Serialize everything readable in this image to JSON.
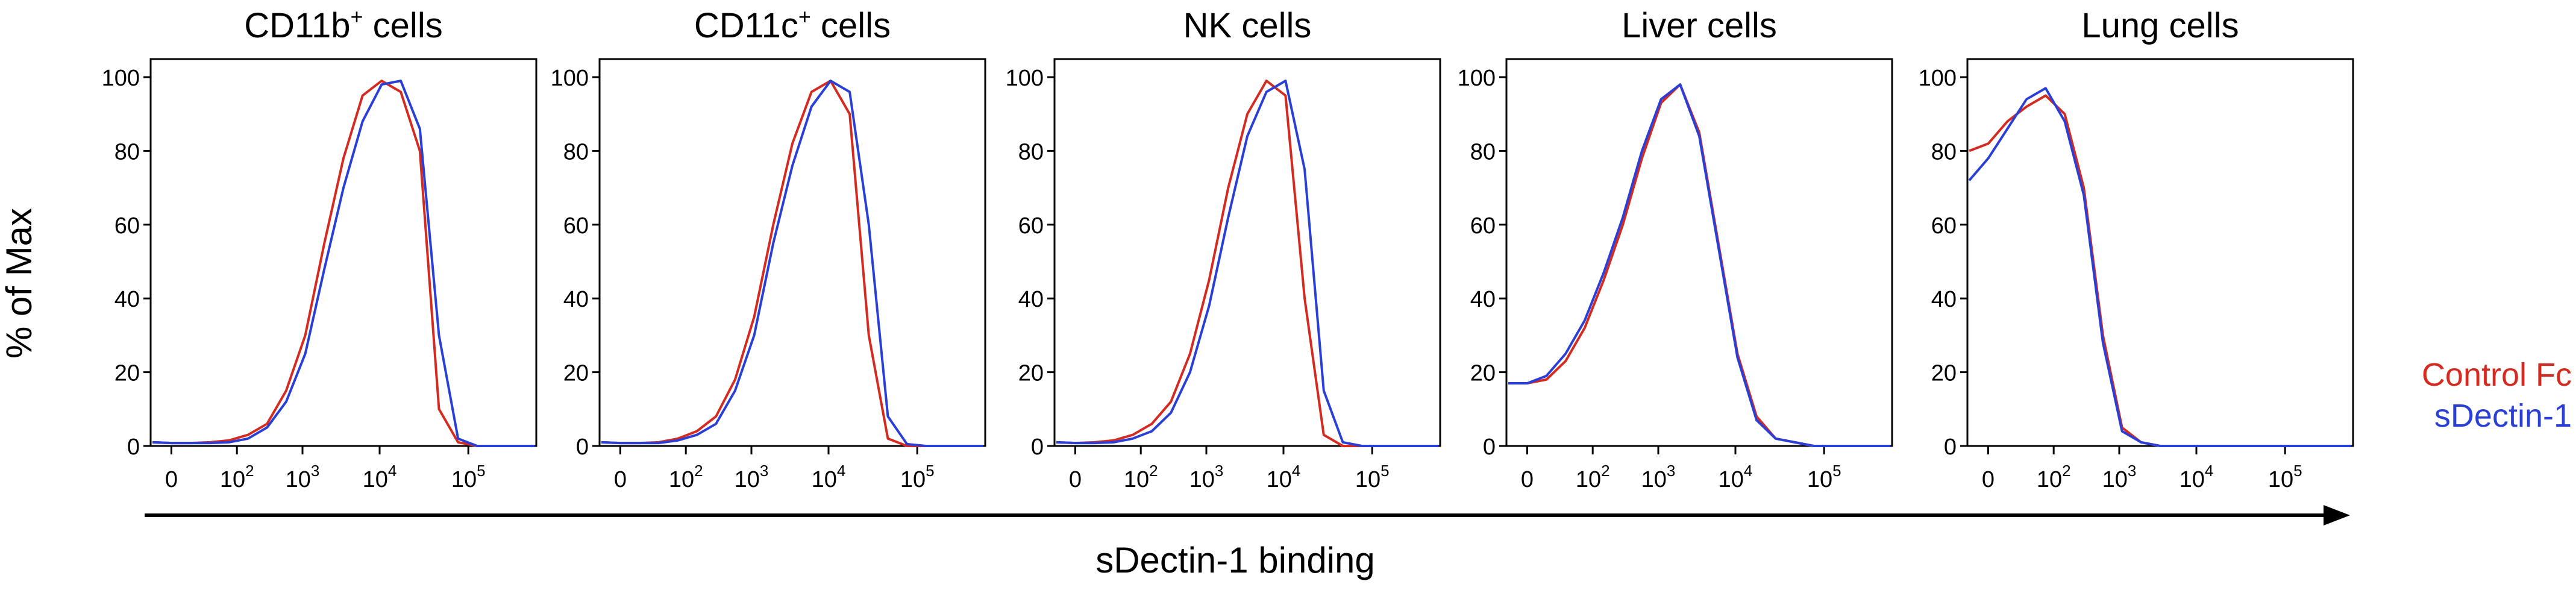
{
  "ylabel": "% of Max",
  "xlabel": "sDectin-1 binding",
  "y_ticks": [
    "0",
    "20",
    "40",
    "60",
    "80",
    "100"
  ],
  "x_ticks": [
    "0",
    "10",
    "10",
    "10",
    "10"
  ],
  "x_tick_exponents": [
    "",
    "2",
    "3",
    "4",
    "5"
  ],
  "legend": [
    {
      "label": "Control Fc",
      "color": "#d42a20"
    },
    {
      "label": "sDectin-1",
      "color": "#2a3fd6"
    }
  ],
  "chart_data": [
    {
      "type": "line",
      "title": "CD11b",
      "title_sup": "+",
      "title_rest": " cells",
      "ylim": [
        0,
        100
      ],
      "x": [
        0,
        50,
        100,
        150,
        200,
        250,
        300,
        350,
        400,
        450,
        500,
        550,
        600,
        650,
        700,
        750,
        800,
        850,
        900,
        1000
      ],
      "series": [
        {
          "name": "Control Fc",
          "values": [
            1,
            0.8,
            0.8,
            1,
            1.5,
            3,
            6,
            15,
            30,
            55,
            78,
            95,
            99,
            96,
            80,
            10,
            1,
            0,
            0,
            0
          ]
        },
        {
          "name": "sDectin-1",
          "values": [
            1,
            0.8,
            0.8,
            0.8,
            1,
            2,
            5,
            12,
            25,
            48,
            70,
            88,
            98,
            99,
            86,
            30,
            2,
            0,
            0,
            0
          ]
        }
      ]
    },
    {
      "type": "line",
      "title": "CD11c",
      "title_sup": "+",
      "title_rest": " cells",
      "ylim": [
        0,
        100
      ],
      "x": [
        0,
        50,
        100,
        150,
        200,
        250,
        300,
        350,
        400,
        450,
        500,
        550,
        600,
        650,
        700,
        750,
        800,
        850,
        900,
        1000
      ],
      "series": [
        {
          "name": "Control Fc",
          "values": [
            1,
            0.8,
            0.8,
            1,
            2,
            4,
            8,
            18,
            35,
            60,
            82,
            96,
            99,
            90,
            30,
            2,
            0,
            0,
            0,
            0
          ]
        },
        {
          "name": "sDectin-1",
          "values": [
            1,
            0.8,
            0.8,
            0.8,
            1.5,
            3,
            6,
            15,
            30,
            55,
            76,
            92,
            99,
            96,
            60,
            8,
            0.5,
            0,
            0,
            0
          ]
        }
      ]
    },
    {
      "type": "line",
      "title": "NK cells",
      "title_sup": "",
      "title_rest": "",
      "ylim": [
        0,
        100
      ],
      "x": [
        0,
        50,
        100,
        150,
        200,
        250,
        300,
        350,
        400,
        450,
        500,
        550,
        600,
        650,
        700,
        750,
        800,
        850,
        900,
        1000
      ],
      "series": [
        {
          "name": "Control Fc",
          "values": [
            1,
            0.8,
            1,
            1.5,
            3,
            6,
            12,
            25,
            45,
            70,
            90,
            99,
            95,
            40,
            3,
            0,
            0,
            0,
            0,
            0
          ]
        },
        {
          "name": "sDectin-1",
          "values": [
            1,
            0.8,
            0.8,
            1,
            2,
            4,
            9,
            20,
            38,
            62,
            84,
            96,
            99,
            75,
            15,
            1,
            0,
            0,
            0,
            0
          ]
        }
      ]
    },
    {
      "type": "line",
      "title": "Liver cells",
      "title_sup": "",
      "title_rest": "",
      "ylim": [
        0,
        100
      ],
      "x": [
        0,
        50,
        100,
        150,
        200,
        250,
        300,
        350,
        400,
        450,
        500,
        550,
        600,
        650,
        700,
        750,
        800,
        850,
        900,
        1000
      ],
      "series": [
        {
          "name": "Control Fc",
          "values": [
            17,
            17,
            18,
            23,
            32,
            45,
            60,
            78,
            93,
            98,
            85,
            55,
            25,
            8,
            2,
            1,
            0,
            0,
            0,
            0
          ]
        },
        {
          "name": "sDectin-1",
          "values": [
            17,
            17,
            19,
            25,
            34,
            47,
            62,
            80,
            94,
            98,
            84,
            54,
            24,
            7,
            2,
            1,
            0,
            0,
            0,
            0
          ]
        }
      ]
    },
    {
      "type": "line",
      "title": "Lung cells",
      "title_sup": "",
      "title_rest": "",
      "ylim": [
        0,
        100
      ],
      "x": [
        0,
        50,
        100,
        150,
        200,
        250,
        300,
        350,
        400,
        450,
        500,
        550,
        600,
        650,
        700,
        750,
        800,
        850,
        900,
        1000
      ],
      "series": [
        {
          "name": "Control Fc",
          "values": [
            80,
            82,
            88,
            92,
            95,
            90,
            70,
            30,
            5,
            1,
            0,
            0,
            0,
            0,
            0,
            0,
            0,
            0,
            0,
            0
          ]
        },
        {
          "name": "sDectin-1",
          "values": [
            72,
            78,
            86,
            94,
            97,
            88,
            68,
            28,
            4,
            1,
            0,
            0,
            0,
            0,
            0,
            0,
            0,
            0,
            0,
            0
          ]
        }
      ]
    }
  ]
}
